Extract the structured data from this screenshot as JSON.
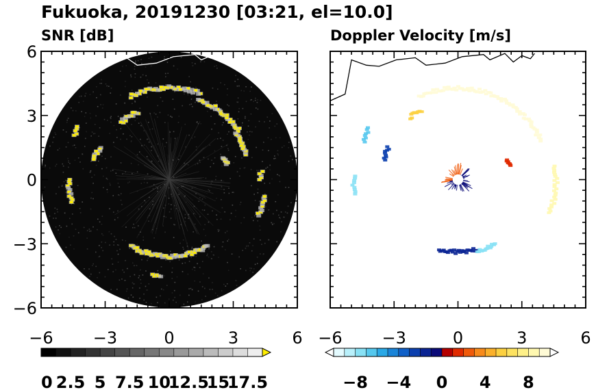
{
  "figure": {
    "title": "Fukuoka, 20191230 [03:21, el=10.0]"
  },
  "chart_data": [
    {
      "type": "heatmap",
      "title": "SNR [dB]",
      "x_ticks": [
        "−6",
        "−3",
        "0",
        "3",
        "6"
      ],
      "y_ticks": [
        "6",
        "3",
        "0",
        "−3",
        "−6"
      ],
      "xlim": [
        -6,
        6
      ],
      "ylim": [
        -6,
        6
      ],
      "colorbar": {
        "min": 0,
        "max": 18.75,
        "extend": "max",
        "tick_labels": [
          "0",
          "2.5",
          "5",
          "7.5",
          "10",
          "12.5",
          "15",
          "17.5"
        ],
        "colors": [
          "#000000",
          "#111111",
          "#222222",
          "#333333",
          "#444444",
          "#555555",
          "#666666",
          "#777777",
          "#888888",
          "#999999",
          "#aaaaaa",
          "#bbbbbb",
          "#cccccc",
          "#dddddd",
          "#eeeeee"
        ],
        "over_color": "#ffee00"
      },
      "background_color": "#0a0a0a",
      "echo_arcs": [
        {
          "r": 4.3,
          "a0": 70,
          "a1": 115,
          "color": "#ffee00"
        },
        {
          "r": 4.0,
          "a0": 35,
          "a1": 70,
          "color": "#ffee00"
        },
        {
          "r": 3.8,
          "a0": 18,
          "a1": 35,
          "color": "#ffee00"
        },
        {
          "r": 3.5,
          "a0": 115,
          "a1": 130,
          "color": "#ffee00"
        },
        {
          "r": 4.7,
          "a0": 180,
          "a1": 193,
          "color": "#ffee00"
        },
        {
          "r": 3.6,
          "a0": 240,
          "a1": 300,
          "color": "#ffee00"
        },
        {
          "r": 4.5,
          "a0": 260,
          "a1": 265,
          "color": "#ffee00"
        },
        {
          "r": 4.5,
          "a0": -22,
          "a1": -10,
          "color": "#ffee00"
        },
        {
          "r": 4.3,
          "a0": 0,
          "a1": 5,
          "color": "#ffee00"
        },
        {
          "r": 2.8,
          "a0": 15,
          "a1": 22,
          "color": "#ffee00"
        },
        {
          "r": 3.6,
          "a0": 155,
          "a1": 165,
          "color": "#ffee00"
        },
        {
          "r": 4.9,
          "a0": 150,
          "a1": 155,
          "color": "#ffee00"
        }
      ]
    },
    {
      "type": "heatmap",
      "title": "Doppler Velocity [m/s]",
      "x_ticks": [
        "−6",
        "−3",
        "0",
        "3",
        "6"
      ],
      "xlim": [
        -6,
        6
      ],
      "ylim": [
        -6,
        6
      ],
      "colorbar": {
        "min": -10,
        "max": 10,
        "extend": "both",
        "tick_labels": [
          "−8",
          "−4",
          "0",
          "4",
          "8"
        ],
        "colors": [
          "#e4fbff",
          "#b8f0fb",
          "#88e1f5",
          "#55c8ee",
          "#2aa8e6",
          "#1a84d8",
          "#1060c8",
          "#0b3fae",
          "#0a2393",
          "#0a0a78",
          "#b40000",
          "#e02a00",
          "#f05a0a",
          "#f88a1a",
          "#fbb02a",
          "#fcd040",
          "#fde260",
          "#fef088",
          "#fff8b0",
          "#fffbd6"
        ],
        "under_color": "#ffffff",
        "over_color": "#ffffff"
      },
      "echo_arcs": [
        {
          "r": 4.3,
          "a0": 25,
          "a1": 115,
          "color": "#fffbd6"
        },
        {
          "r": 3.7,
          "a0": 118,
          "a1": 128,
          "color": "#fcd040"
        },
        {
          "r": 3.6,
          "a0": 155,
          "a1": 165,
          "color": "#0b3fae"
        },
        {
          "r": 4.8,
          "a0": 150,
          "a1": 158,
          "color": "#55c8ee"
        },
        {
          "r": 4.9,
          "a0": 178,
          "a1": 188,
          "color": "#88e1f5"
        },
        {
          "r": 3.4,
          "a0": 255,
          "a1": 285,
          "color": "#0a2393"
        },
        {
          "r": 3.5,
          "a0": 285,
          "a1": 300,
          "color": "#88e1f5"
        },
        {
          "r": 2.5,
          "a0": 15,
          "a1": 22,
          "color": "#e02a00"
        },
        {
          "r": 4.6,
          "a0": -20,
          "a1": 8,
          "color": "#fff8b0"
        }
      ],
      "center_cluster": {
        "positive_color": "#f05a0a",
        "negative_color": "#0a0a78"
      }
    }
  ]
}
